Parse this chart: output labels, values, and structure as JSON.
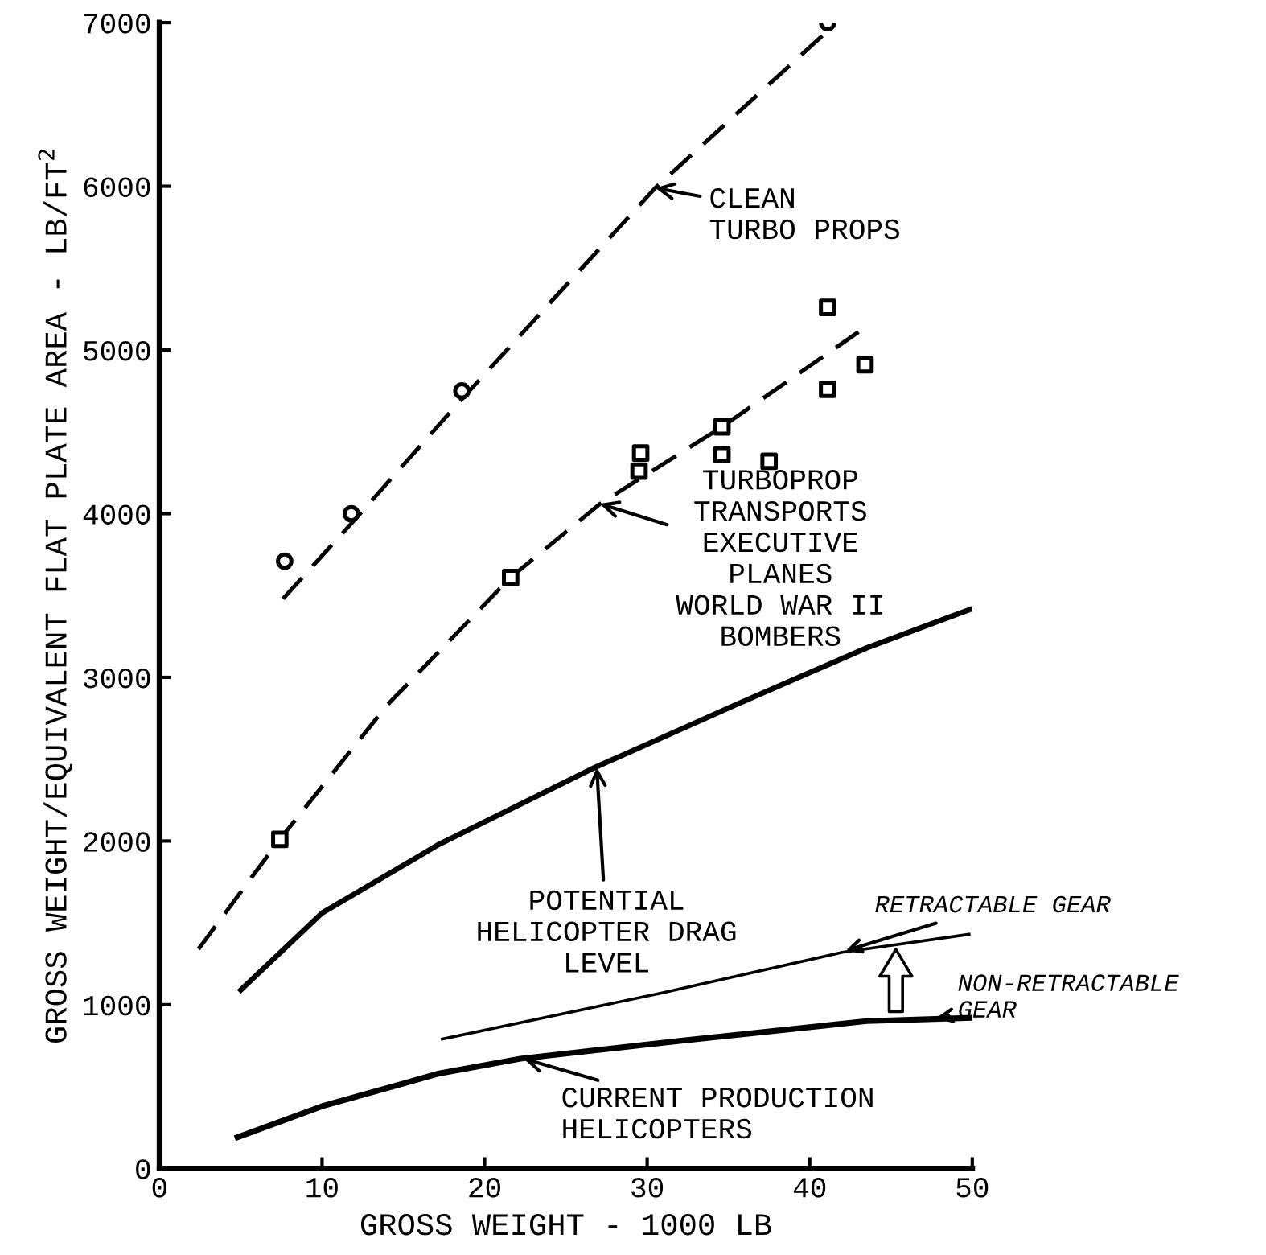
{
  "chart_data": {
    "type": "line",
    "xlabel": "GROSS WEIGHT - 1000 LB",
    "ylabel": "GROSS WEIGHT/EQUIVALENT FLAT PLATE AREA - LB/FT$^{2}$",
    "xlim": [
      0,
      50
    ],
    "xticks": [
      0,
      10,
      20,
      30,
      40,
      50
    ],
    "ylim": [
      0,
      7000
    ],
    "yticks": [
      0,
      1000,
      2000,
      3000,
      4000,
      5000,
      6000,
      7000
    ],
    "grid": false,
    "legend": false,
    "series": [
      {
        "line_style": "dashed",
        "color": "#000000",
        "x": [
          7.6,
          11.8,
          18.6,
          30.5,
          41.0
        ],
        "values": [
          3480,
          3940,
          4700,
          5990,
          6940
        ]
      },
      {
        "type": "scatter",
        "marker": "circle",
        "color": "#000000",
        "x": [
          7.7,
          11.8,
          18.6,
          41.1
        ],
        "values": [
          3710,
          4000,
          4750,
          7000
        ]
      },
      {
        "line_style": "dashed",
        "color": "#000000",
        "x": [
          2.4,
          7.4,
          14.0,
          21.6,
          27.1,
          34.6,
          43.0
        ],
        "values": [
          1340,
          2010,
          2830,
          3610,
          4060,
          4530,
          5110
        ]
      },
      {
        "type": "scatter",
        "marker": "square",
        "color": "#000000",
        "x": [
          7.4,
          21.6,
          29.5,
          29.6,
          34.6,
          34.6,
          37.5,
          41.1,
          41.1,
          43.4
        ],
        "values": [
          2010,
          3610,
          4260,
          4370,
          4360,
          4530,
          4320,
          4760,
          5260,
          4910
        ]
      },
      {
        "line_style": "solid",
        "color": "#000000",
        "x": [
          5.0,
          10.0,
          17.2,
          26.8,
          35.4,
          43.5,
          50.0
        ],
        "values": [
          1090,
          1560,
          1980,
          2450,
          2830,
          3180,
          3420
        ]
      },
      {
        "line_style": "solid",
        "color": "#000000",
        "x": [
          17.4,
          30.8,
          42.0,
          49.8
        ],
        "values": [
          790,
          1070,
          1320,
          1430
        ]
      },
      {
        "line_style": "solid",
        "color": "#000000",
        "x": [
          4.8,
          10.0,
          17.2,
          22.2,
          32.1,
          43.5,
          50.0
        ],
        "values": [
          190,
          380,
          580,
          670,
          780,
          900,
          920
        ]
      }
    ],
    "annotations": [
      {
        "text": "CLEAN\nTURBO PROPS",
        "x": 30.5,
        "y": 5990
      },
      {
        "text": "TURBOPROP\nTRANSPORTS\nEXECUTIVE\nPLANES\nWORLD WAR II\nBOMBERS",
        "x": 27.1,
        "y": 4060
      },
      {
        "text": "POTENTIAL\nHELICOPTER DRAG\nLEVEL",
        "x": 26.9,
        "y": 2450
      },
      {
        "text": "RETRACTABLE GEAR",
        "x": 42.2,
        "y": 1330
      },
      {
        "text": "NON-RETRACTABLE\nGEAR",
        "x": 47.8,
        "y": 920
      },
      {
        "text": "CURRENT PRODUCTION\nHELICOPTERS",
        "x": 22.4,
        "y": 670
      }
    ]
  }
}
